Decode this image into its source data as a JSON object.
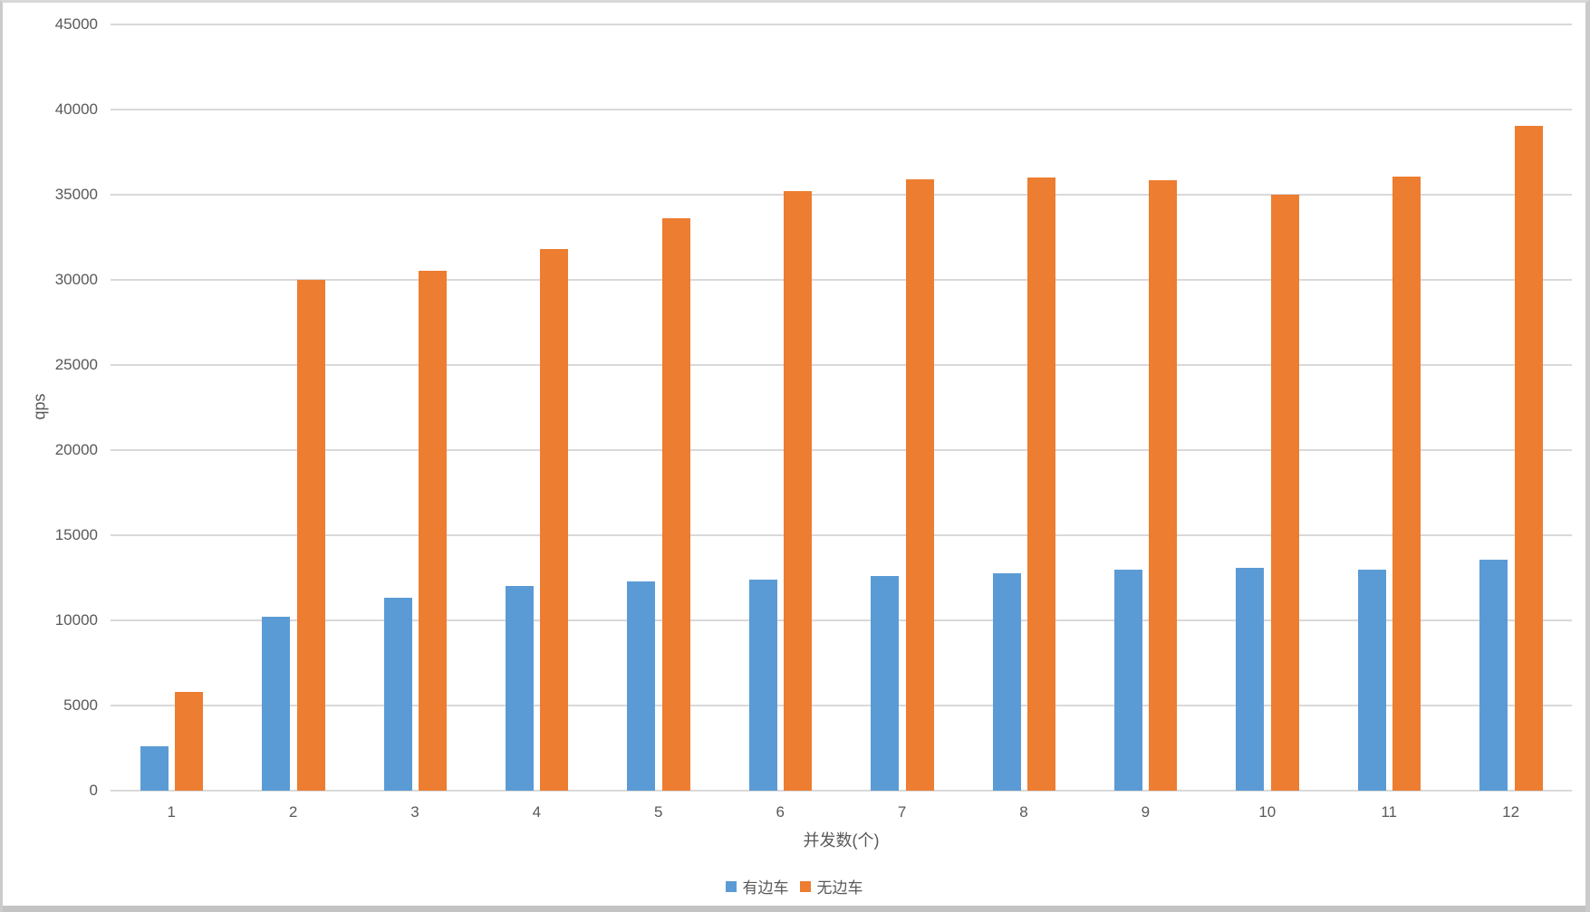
{
  "chart_data": {
    "type": "bar",
    "title": "",
    "categories": [
      "1",
      "2",
      "3",
      "4",
      "5",
      "6",
      "7",
      "8",
      "9",
      "10",
      "11",
      "12"
    ],
    "series": [
      {
        "name": "有边车",
        "color": "#5B9BD5",
        "values": [
          2600,
          10200,
          11300,
          12000,
          12250,
          12350,
          12600,
          12750,
          12950,
          13050,
          12950,
          13550
        ]
      },
      {
        "name": "无边车",
        "color": "#ED7D31",
        "values": [
          5750,
          30000,
          30500,
          31800,
          33600,
          35200,
          35900,
          36000,
          35850,
          35000,
          36050,
          39000
        ]
      }
    ],
    "xlabel": "并发数(个)",
    "ylabel": "qps",
    "ylim": [
      0,
      45000
    ],
    "y_tick_step": 5000,
    "y_ticks": [
      "0",
      "5000",
      "10000",
      "15000",
      "20000",
      "25000",
      "30000",
      "35000",
      "40000",
      "45000"
    ],
    "grid": true,
    "legend_position": "bottom",
    "grid_color": "#d9d9d9",
    "text_color": "#595959",
    "background_color": "#ffffff"
  }
}
